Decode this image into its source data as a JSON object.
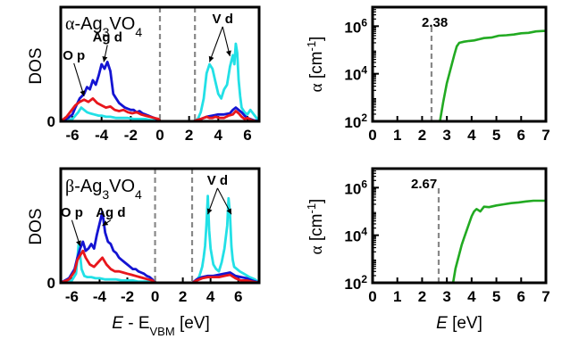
{
  "colors": {
    "O_p": "#e8161c",
    "Ag_d": "#1414d2",
    "V_d": "#22e0e6",
    "absorption": "#22aa22",
    "gap_line": "#888888",
    "axis": "#000000"
  },
  "shared_labels": {
    "dos_xlabel_main": "E",
    "dos_xlabel_dash": " - E",
    "dos_xlabel_sub": "VBM",
    "dos_xlabel_unit": " [eV]",
    "abs_xlabel_main": "E",
    "abs_xlabel_unit": " [eV]"
  },
  "chart_data": [
    {
      "id": "dos_alpha",
      "type": "line",
      "ylabel": "DOS",
      "title_greek": "α",
      "title_formula": "-Ag",
      "title_sub1": "3",
      "title_mid": "VO",
      "title_sub2": "4",
      "xlim": [
        -6.8,
        6.8
      ],
      "ylim": [
        0,
        1.0
      ],
      "xticks": [
        -6,
        -4,
        -2,
        0,
        2,
        4,
        6
      ],
      "yticks": [
        0
      ],
      "gap_lines": [
        0,
        2.4
      ],
      "annotations": [
        {
          "text": "O p",
          "x": -5.9,
          "y": 0.54,
          "arrow_to": [
            -5.2,
            0.22
          ]
        },
        {
          "text": "Ag d",
          "x": -3.6,
          "y": 0.7,
          "arrow_to": [
            -3.85,
            0.52
          ]
        },
        {
          "text": "V d",
          "x": 4.3,
          "y": 0.86,
          "arrows_to": [
            [
              3.4,
              0.52
            ],
            [
              4.8,
              0.57
            ]
          ]
        }
      ],
      "series": [
        {
          "name": "O p",
          "color_key": "O_p",
          "x": [
            -6.8,
            -6.4,
            -6.1,
            -5.8,
            -5.5,
            -5.2,
            -4.9,
            -4.6,
            -4.3,
            -4.0,
            -3.7,
            -3.4,
            -3.1,
            -2.8,
            -2.5,
            -2.2,
            -1.9,
            -1.6,
            -1.3,
            -1.0,
            -0.7,
            -0.4,
            -0.1,
            0.0,
            2.3,
            2.5,
            2.8,
            3.0,
            3.2,
            3.4,
            3.6,
            3.8,
            4.1,
            4.4,
            4.7,
            5.0,
            5.2,
            5.4,
            5.6,
            5.8,
            6.0,
            6.3,
            6.6,
            6.8
          ],
          "y": [
            0,
            0.04,
            0.09,
            0.14,
            0.17,
            0.19,
            0.17,
            0.2,
            0.16,
            0.14,
            0.12,
            0.13,
            0.1,
            0.09,
            0.1,
            0.08,
            0.07,
            0.08,
            0.06,
            0.05,
            0.04,
            0.03,
            0.02,
            0,
            0,
            0.01,
            0.02,
            0.03,
            0.04,
            0.03,
            0.03,
            0.04,
            0.03,
            0.03,
            0.05,
            0.06,
            0.09,
            0.07,
            0.04,
            0.02,
            0.03,
            0.01,
            0,
            0
          ]
        },
        {
          "name": "Ag d",
          "color_key": "Ag_d",
          "x": [
            -6.8,
            -6.3,
            -6.0,
            -5.8,
            -5.5,
            -5.2,
            -5.0,
            -4.8,
            -4.6,
            -4.4,
            -4.2,
            -4.0,
            -3.8,
            -3.6,
            -3.4,
            -3.2,
            -3.0,
            -2.8,
            -2.6,
            -2.4,
            -2.2,
            -2.0,
            -1.8,
            -1.6,
            -1.4,
            -1.2,
            -1.0,
            -0.8,
            -0.6,
            -0.4,
            -0.2,
            0.0,
            2.3,
            2.8,
            3.2,
            3.6,
            4.0,
            4.4,
            4.8,
            5.0,
            5.2,
            5.4,
            5.6,
            5.8,
            6.0,
            6.4,
            6.8
          ],
          "y": [
            0,
            0.03,
            0.06,
            0.12,
            0.2,
            0.24,
            0.3,
            0.28,
            0.36,
            0.32,
            0.4,
            0.5,
            0.46,
            0.52,
            0.44,
            0.24,
            0.2,
            0.16,
            0.14,
            0.12,
            0.11,
            0.1,
            0.1,
            0.08,
            0.09,
            0.07,
            0.06,
            0.05,
            0.04,
            0.03,
            0.02,
            0,
            0,
            0.02,
            0.04,
            0.05,
            0.06,
            0.06,
            0.07,
            0.1,
            0.12,
            0.1,
            0.08,
            0.05,
            0.03,
            0.01,
            0
          ]
        },
        {
          "name": "V d",
          "color_key": "V_d",
          "x": [
            -6.8,
            -6.0,
            -5.8,
            -5.6,
            -5.4,
            -5.2,
            -5.0,
            -4.8,
            -4.5,
            -4.2,
            -4.0,
            -3.7,
            -3.4,
            -3.0,
            -2.6,
            -2.2,
            -1.8,
            -1.4,
            -1.0,
            -0.6,
            -0.2,
            0.0,
            2.3,
            2.6,
            2.8,
            3.0,
            3.2,
            3.4,
            3.6,
            3.8,
            4.0,
            4.2,
            4.4,
            4.6,
            4.8,
            5.0,
            5.1,
            5.2,
            5.3,
            5.4,
            5.5,
            5.6,
            5.8,
            6.0,
            6.2,
            6.5,
            6.8
          ],
          "y": [
            0,
            0.02,
            0.05,
            0.08,
            0.12,
            0.1,
            0.08,
            0.07,
            0.06,
            0.05,
            0.05,
            0.04,
            0.04,
            0.03,
            0.03,
            0.03,
            0.02,
            0.02,
            0.02,
            0.01,
            0.01,
            0,
            0,
            0.02,
            0.08,
            0.2,
            0.42,
            0.5,
            0.46,
            0.35,
            0.24,
            0.2,
            0.28,
            0.32,
            0.48,
            0.58,
            0.5,
            0.68,
            0.6,
            0.36,
            0.22,
            0.12,
            0.08,
            0.06,
            0.1,
            0.05,
            0
          ]
        }
      ]
    },
    {
      "id": "abs_alpha",
      "type": "line",
      "ylabel_greek": "α",
      "ylabel_unit": " [cm",
      "ylabel_sup": "-1",
      "ylabel_close": "]",
      "xlim": [
        0,
        7
      ],
      "ylim": [
        2,
        6.8
      ],
      "log_y": true,
      "xticks": [
        0,
        1,
        2,
        3,
        4,
        5,
        6,
        7
      ],
      "yticks": [
        2,
        4,
        6
      ],
      "ytick_base": "10",
      "gap_value": 2.38,
      "gap_label": "2.38",
      "series": [
        {
          "color_key": "absorption",
          "x": [
            2.72,
            2.85,
            3.0,
            3.1,
            3.2,
            3.3,
            3.4,
            3.5,
            3.7,
            3.9,
            4.1,
            4.3,
            4.5,
            4.8,
            5.1,
            5.4,
            5.7,
            6.0,
            6.3,
            6.6,
            6.9,
            7.0
          ],
          "y": [
            2.0,
            2.8,
            3.6,
            4.0,
            4.4,
            4.8,
            5.15,
            5.3,
            5.35,
            5.38,
            5.4,
            5.45,
            5.5,
            5.52,
            5.6,
            5.62,
            5.65,
            5.7,
            5.72,
            5.78,
            5.8,
            5.8
          ]
        }
      ]
    },
    {
      "id": "dos_beta",
      "type": "line",
      "ylabel": "DOS",
      "title_greek": "β",
      "title_formula": "-Ag",
      "title_sub1": "3",
      "title_mid": "VO",
      "title_sub2": "4",
      "xlim": [
        -6.8,
        7.5
      ],
      "ylim": [
        0,
        1.0
      ],
      "xticks": [
        -6,
        -4,
        -2,
        0,
        2,
        4,
        6
      ],
      "yticks": [
        0
      ],
      "gap_lines": [
        0,
        2.67
      ],
      "annotations": [
        {
          "text": "O p",
          "x": -6.0,
          "y": 0.58,
          "arrow_to": [
            -5.4,
            0.32
          ]
        },
        {
          "text": "Ag d",
          "x": -3.2,
          "y": 0.58,
          "arrow_to": [
            -3.8,
            0.5
          ]
        },
        {
          "text": "V d",
          "x": 4.5,
          "y": 0.86,
          "arrows_to": [
            [
              3.8,
              0.6
            ],
            [
              5.5,
              0.6
            ]
          ]
        }
      ],
      "series": [
        {
          "name": "O p",
          "color_key": "O_p",
          "x": [
            -6.8,
            -6.2,
            -5.8,
            -5.6,
            -5.4,
            -5.2,
            -5.0,
            -4.7,
            -4.4,
            -4.1,
            -3.8,
            -3.5,
            -3.2,
            -2.9,
            -2.6,
            -2.3,
            -2.0,
            -1.7,
            -1.4,
            -1.1,
            -0.8,
            -0.5,
            -0.2,
            0.0,
            2.7,
            3.0,
            3.4,
            3.8,
            4.2,
            4.6,
            5.0,
            5.4,
            5.8,
            6.2,
            6.6,
            7.0,
            7.5
          ],
          "y": [
            0,
            0.03,
            0.1,
            0.2,
            0.24,
            0.28,
            0.22,
            0.16,
            0.14,
            0.18,
            0.22,
            0.16,
            0.12,
            0.1,
            0.1,
            0.09,
            0.08,
            0.07,
            0.06,
            0.05,
            0.04,
            0.03,
            0.02,
            0,
            0,
            0.02,
            0.04,
            0.05,
            0.05,
            0.05,
            0.06,
            0.07,
            0.04,
            0.02,
            0.02,
            0.01,
            0
          ]
        },
        {
          "name": "Ag d",
          "color_key": "Ag_d",
          "x": [
            -6.8,
            -6.2,
            -5.8,
            -5.6,
            -5.4,
            -5.2,
            -5.0,
            -4.8,
            -4.6,
            -4.4,
            -4.2,
            -4.0,
            -3.8,
            -3.6,
            -3.4,
            -3.2,
            -3.0,
            -2.8,
            -2.6,
            -2.4,
            -2.2,
            -2.0,
            -1.8,
            -1.6,
            -1.4,
            -1.2,
            -1.0,
            -0.8,
            -0.6,
            -0.4,
            -0.2,
            0.0,
            2.7,
            3.0,
            3.4,
            3.8,
            4.2,
            4.6,
            5.0,
            5.4,
            5.8,
            6.2,
            6.6,
            7.0,
            7.5
          ],
          "y": [
            0,
            0.04,
            0.12,
            0.22,
            0.3,
            0.36,
            0.28,
            0.3,
            0.34,
            0.3,
            0.42,
            0.52,
            0.62,
            0.44,
            0.36,
            0.34,
            0.28,
            0.26,
            0.22,
            0.2,
            0.18,
            0.16,
            0.14,
            0.12,
            0.12,
            0.1,
            0.09,
            0.08,
            0.06,
            0.05,
            0.03,
            0,
            0,
            0.03,
            0.05,
            0.06,
            0.06,
            0.07,
            0.08,
            0.09,
            0.06,
            0.05,
            0.04,
            0.02,
            0
          ]
        },
        {
          "name": "V d",
          "color_key": "V_d",
          "x": [
            -6.8,
            -6.0,
            -5.7,
            -5.5,
            -5.3,
            -5.1,
            -4.9,
            -4.6,
            -4.3,
            -4.0,
            -3.6,
            -3.2,
            -2.8,
            -2.4,
            -2.0,
            -1.6,
            -1.2,
            -0.8,
            -0.4,
            0.0,
            2.7,
            3.0,
            3.2,
            3.4,
            3.5,
            3.6,
            3.7,
            3.8,
            3.9,
            4.0,
            4.2,
            4.4,
            4.6,
            4.8,
            5.0,
            5.2,
            5.3,
            5.4,
            5.5,
            5.6,
            5.7,
            5.9,
            6.1,
            6.4,
            6.8,
            7.2,
            7.5
          ],
          "y": [
            0,
            0.02,
            0.08,
            0.35,
            0.12,
            0.06,
            0.05,
            0.05,
            0.04,
            0.04,
            0.03,
            0.03,
            0.03,
            0.02,
            0.02,
            0.02,
            0.01,
            0.01,
            0.01,
            0,
            0,
            0.02,
            0.06,
            0.14,
            0.22,
            0.32,
            0.5,
            0.76,
            0.46,
            0.3,
            0.16,
            0.12,
            0.1,
            0.18,
            0.3,
            0.5,
            0.74,
            0.6,
            0.32,
            0.2,
            0.14,
            0.12,
            0.1,
            0.08,
            0.05,
            0.03,
            0
          ]
        }
      ]
    },
    {
      "id": "abs_beta",
      "type": "line",
      "ylabel_greek": "α",
      "ylabel_unit": " [cm",
      "ylabel_sup": "-1",
      "ylabel_close": "]",
      "xlim": [
        0,
        7
      ],
      "ylim": [
        2,
        6.8
      ],
      "log_y": true,
      "xticks": [
        0,
        1,
        2,
        3,
        4,
        5,
        6,
        7
      ],
      "yticks": [
        2,
        4,
        6
      ],
      "ytick_base": "10",
      "gap_value": 2.67,
      "gap_label": "2.67",
      "series": [
        {
          "color_key": "absorption",
          "x": [
            3.25,
            3.35,
            3.5,
            3.6,
            3.7,
            3.8,
            3.9,
            4.0,
            4.1,
            4.2,
            4.35,
            4.5,
            4.7,
            5.0,
            5.3,
            5.6,
            5.9,
            6.2,
            6.5,
            6.8,
            7.0
          ],
          "y": [
            2.0,
            2.6,
            3.2,
            3.6,
            3.9,
            4.2,
            4.5,
            4.8,
            5.0,
            5.1,
            5.0,
            5.2,
            5.18,
            5.25,
            5.3,
            5.35,
            5.38,
            5.42,
            5.45,
            5.45,
            5.45
          ]
        }
      ]
    }
  ]
}
